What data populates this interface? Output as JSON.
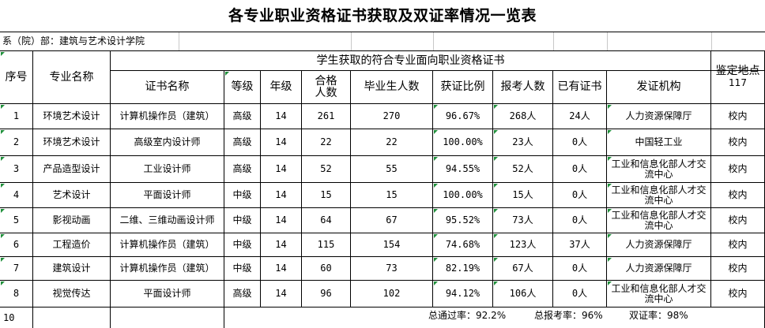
{
  "title": "各专业职业资格证书获取及双证率情况一览表",
  "department": "系（院）部：建筑与艺术设计学院",
  "headers": {
    "seq": "序号",
    "major": "专业名称",
    "group": "学生获取的符合专业面向职业资格证书",
    "cert_name": "证书名称",
    "level": "等级",
    "grade": "年级",
    "qualified_count": "合格人数",
    "graduates": "毕业生人数",
    "cert_ratio": "获证比例",
    "applicants": "报考人数",
    "existing": "已有证书",
    "issuer": "发证机构",
    "site": "鉴定地点",
    "site_count": "117"
  },
  "rows": [
    {
      "seq": "1",
      "major": "环境艺术设计",
      "cert": "计算机操作员（建筑）",
      "level": "高级",
      "grade": "14",
      "qualified": "261",
      "graduates": "270",
      "ratio": "96.67%",
      "applicants": "268人",
      "existing": "24人",
      "issuer": "人力资源保障厅",
      "site": "校内"
    },
    {
      "seq": "2",
      "major": "环境艺术设计",
      "cert": "高级室内设计师",
      "level": "高级",
      "grade": "14",
      "qualified": "22",
      "graduates": "22",
      "ratio": "100.00%",
      "applicants": "23人",
      "existing": "0人",
      "issuer": "中国轻工业",
      "site": "校内"
    },
    {
      "seq": "3",
      "major": "产品造型设计",
      "cert": "工业设计师",
      "level": "高级",
      "grade": "14",
      "qualified": "52",
      "graduates": "55",
      "ratio": "94.55%",
      "applicants": "52人",
      "existing": "0人",
      "issuer": "工业和信息化部人才交流中心",
      "site": "校内"
    },
    {
      "seq": "4",
      "major": "艺术设计",
      "cert": "平面设计师",
      "level": "中级",
      "grade": "14",
      "qualified": "15",
      "graduates": "15",
      "ratio": "100.00%",
      "applicants": "15人",
      "existing": "0人",
      "issuer": "工业和信息化部人才交流中心",
      "site": "校内"
    },
    {
      "seq": "5",
      "major": "影视动画",
      "cert": "二维、三维动画设计师",
      "level": "中级",
      "grade": "14",
      "qualified": "64",
      "graduates": "67",
      "ratio": "95.52%",
      "applicants": "73人",
      "existing": "0人",
      "issuer": "工业和信息化部人才交流中心",
      "site": "校内"
    },
    {
      "seq": "6",
      "major": "工程造价",
      "cert": "计算机操作员（建筑）",
      "level": "中级",
      "grade": "14",
      "qualified": "115",
      "graduates": "154",
      "ratio": "74.68%",
      "applicants": "123人",
      "existing": "37人",
      "issuer": "人力资源保障厅",
      "site": "校内"
    },
    {
      "seq": "7",
      "major": "建筑设计",
      "cert": "计算机操作员（建筑）",
      "level": "中级",
      "grade": "14",
      "qualified": "60",
      "graduates": "73",
      "ratio": "82.19%",
      "applicants": "67人",
      "existing": "0人",
      "issuer": "人力资源保障厅",
      "site": "校内"
    },
    {
      "seq": "8",
      "major": "视觉传达",
      "cert": "平面设计师",
      "level": "高级",
      "grade": "14",
      "qualified": "96",
      "graduates": "102",
      "ratio": "94.12%",
      "applicants": "106人",
      "existing": "0人",
      "issuer": "工业和信息化部人才交流中心",
      "site": "校内"
    }
  ],
  "last_row_seq": "10",
  "summary": {
    "pass_rate": "总通过率：92.2%",
    "apply_rate": "总报考率：96%",
    "dual_rate": "双证率：98%"
  }
}
